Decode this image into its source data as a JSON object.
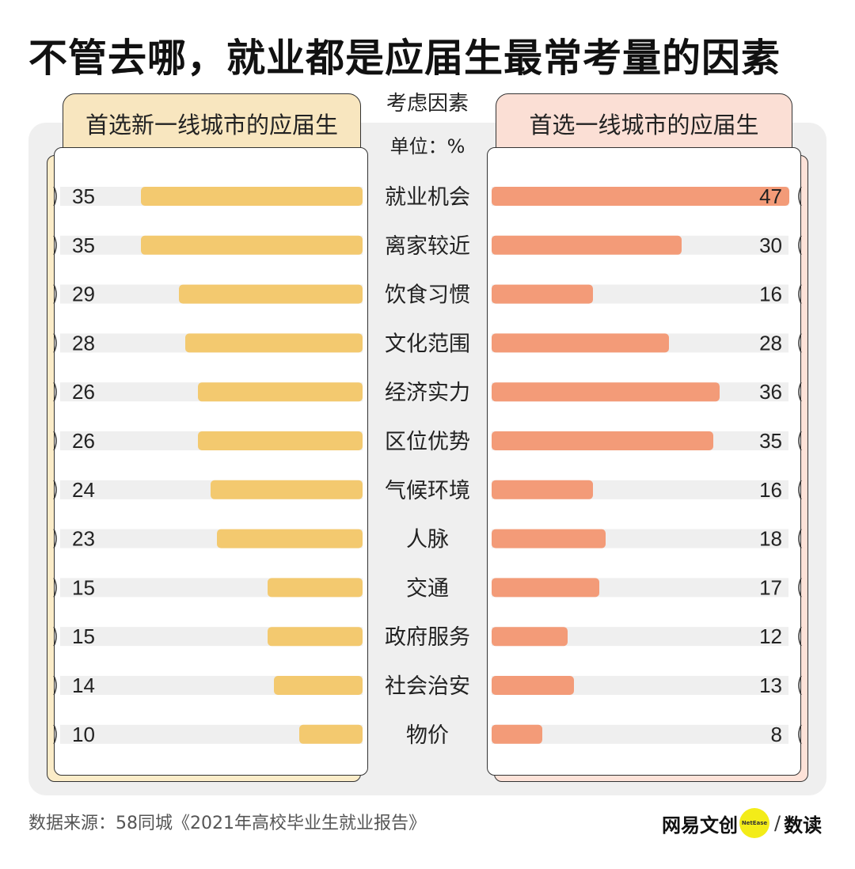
{
  "title": "不管去哪，就业都是应届生最常考量的因素",
  "left_panel": {
    "label": "首选新一线城市的应届生"
  },
  "right_panel": {
    "label": "首选一线城市的应届生"
  },
  "center": {
    "header": "考虑因素",
    "unit": "单位：%"
  },
  "colors": {
    "left_bar": "#f3c96f",
    "right_bar": "#f39b78",
    "track": "#efefef",
    "left_tab": "#f8e6bf",
    "right_tab": "#fbdfd5"
  },
  "chart_data": {
    "type": "bar",
    "title": "不管去哪，就业都是应届生最常考量的因素",
    "unit": "%",
    "categories": [
      "就业机会",
      "离家较近",
      "饮食习惯",
      "文化范围",
      "经济实力",
      "区位优势",
      "气候环境",
      "人脉",
      "交通",
      "政府服务",
      "社会治安",
      "物价"
    ],
    "series": [
      {
        "name": "首选新一线城市的应届生",
        "values": [
          35,
          35,
          29,
          28,
          26,
          26,
          24,
          23,
          15,
          15,
          14,
          10
        ]
      },
      {
        "name": "首选一线城市的应届生",
        "values": [
          47,
          30,
          16,
          28,
          36,
          35,
          16,
          18,
          17,
          12,
          13,
          8
        ]
      }
    ],
    "xlim": [
      0,
      47
    ],
    "legend": "top"
  },
  "footer": {
    "source": "数据来源：58同城《2021年高校毕业生就业报告》",
    "brand_left": "网易文创",
    "brand_badge": "NetEase",
    "brand_slash": "/",
    "brand_right": "数读"
  }
}
